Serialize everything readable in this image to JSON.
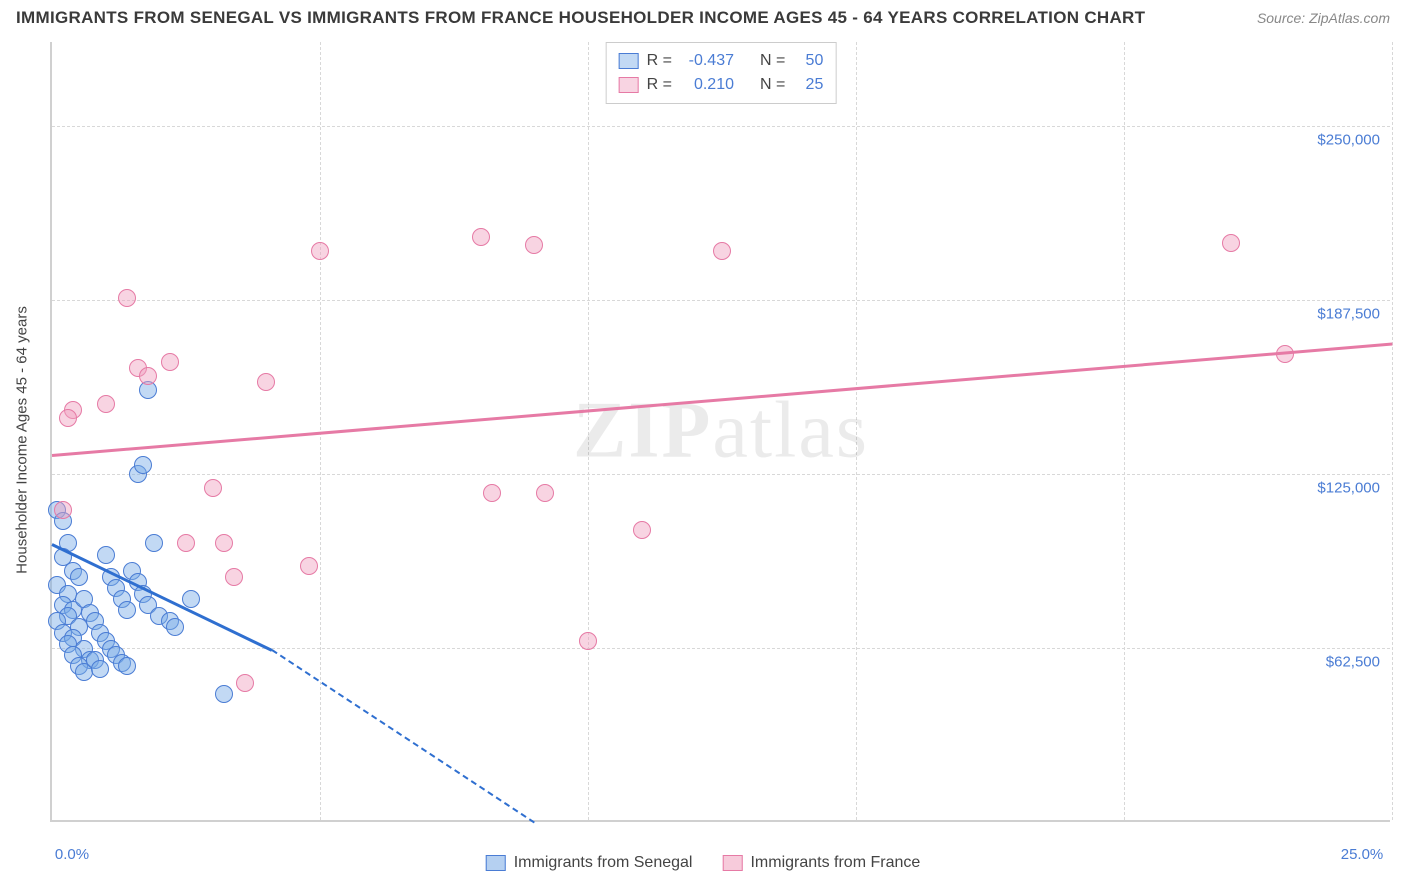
{
  "title": "IMMIGRANTS FROM SENEGAL VS IMMIGRANTS FROM FRANCE HOUSEHOLDER INCOME AGES 45 - 64 YEARS CORRELATION CHART",
  "source": "Source: ZipAtlas.com",
  "y_axis_title": "Householder Income Ages 45 - 64 years",
  "watermark_bold": "ZIP",
  "watermark_rest": "atlas",
  "chart": {
    "type": "scatter",
    "xlim": [
      0,
      25
    ],
    "ylim": [
      0,
      280000
    ],
    "x_ticks": [
      0,
      5,
      10,
      15,
      20,
      25
    ],
    "y_gridlines": [
      62500,
      125000,
      187500,
      250000
    ],
    "y_tick_labels": [
      "$62,500",
      "$125,000",
      "$187,500",
      "$250,000"
    ],
    "x_tick_labels_shown": {
      "0": "0.0%",
      "25": "25.0%"
    },
    "background_color": "#ffffff",
    "grid_color": "#d8d8d8",
    "axis_color": "#d0d0d0"
  },
  "series": [
    {
      "name": "Immigrants from Senegal",
      "label": "Immigrants from Senegal",
      "R": "-0.437",
      "N": "50",
      "marker_fill": "rgba(120,170,230,0.45)",
      "marker_stroke": "#4a7cd4",
      "marker_radius": 9,
      "trend_color": "#2f6fd0",
      "trend_width": 3,
      "trend": {
        "x1": 0,
        "y1": 100000,
        "x2": 4.1,
        "y2": 62000,
        "dash_x2": 9.0,
        "dash_y2": 0
      },
      "points": [
        [
          0.1,
          112000
        ],
        [
          0.2,
          108000
        ],
        [
          0.3,
          100000
        ],
        [
          0.2,
          95000
        ],
        [
          0.4,
          90000
        ],
        [
          0.1,
          85000
        ],
        [
          0.3,
          82000
        ],
        [
          0.5,
          88000
        ],
        [
          0.2,
          78000
        ],
        [
          0.4,
          76000
        ],
        [
          0.6,
          80000
        ],
        [
          0.3,
          74000
        ],
        [
          0.1,
          72000
        ],
        [
          0.5,
          70000
        ],
        [
          0.7,
          75000
        ],
        [
          0.2,
          68000
        ],
        [
          0.4,
          66000
        ],
        [
          0.8,
          72000
        ],
        [
          0.3,
          64000
        ],
        [
          0.6,
          62000
        ],
        [
          0.9,
          68000
        ],
        [
          0.4,
          60000
        ],
        [
          0.7,
          58000
        ],
        [
          1.0,
          65000
        ],
        [
          0.5,
          56000
        ],
        [
          1.1,
          62000
        ],
        [
          0.6,
          54000
        ],
        [
          1.2,
          60000
        ],
        [
          0.8,
          58000
        ],
        [
          1.3,
          57000
        ],
        [
          0.9,
          55000
        ],
        [
          1.4,
          56000
        ],
        [
          1.0,
          96000
        ],
        [
          1.5,
          90000
        ],
        [
          1.1,
          88000
        ],
        [
          1.6,
          86000
        ],
        [
          1.2,
          84000
        ],
        [
          1.7,
          82000
        ],
        [
          1.3,
          80000
        ],
        [
          1.8,
          78000
        ],
        [
          1.4,
          76000
        ],
        [
          2.0,
          74000
        ],
        [
          1.9,
          100000
        ],
        [
          1.6,
          125000
        ],
        [
          1.7,
          128000
        ],
        [
          2.2,
          72000
        ],
        [
          2.3,
          70000
        ],
        [
          2.6,
          80000
        ],
        [
          3.2,
          46000
        ],
        [
          1.8,
          155000
        ]
      ]
    },
    {
      "name": "Immigrants from France",
      "label": "Immigrants from France",
      "R": "0.210",
      "N": "25",
      "marker_fill": "rgba(240,160,190,0.45)",
      "marker_stroke": "#e67aa5",
      "marker_radius": 9,
      "trend_color": "#e67aa5",
      "trend_width": 3,
      "trend": {
        "x1": 0,
        "y1": 132000,
        "x2": 25,
        "y2": 172000
      },
      "points": [
        [
          0.2,
          112000
        ],
        [
          0.4,
          148000
        ],
        [
          1.0,
          150000
        ],
        [
          1.4,
          188000
        ],
        [
          1.6,
          163000
        ],
        [
          1.8,
          160000
        ],
        [
          2.2,
          165000
        ],
        [
          2.5,
          100000
        ],
        [
          3.0,
          120000
        ],
        [
          3.2,
          100000
        ],
        [
          3.4,
          88000
        ],
        [
          3.6,
          50000
        ],
        [
          4.0,
          158000
        ],
        [
          4.8,
          92000
        ],
        [
          5.0,
          205000
        ],
        [
          8.0,
          210000
        ],
        [
          8.2,
          118000
        ],
        [
          9.0,
          207000
        ],
        [
          9.2,
          118000
        ],
        [
          10.0,
          65000
        ],
        [
          11.0,
          105000
        ],
        [
          12.5,
          205000
        ],
        [
          22.0,
          208000
        ],
        [
          23.0,
          168000
        ],
        [
          0.3,
          145000
        ]
      ]
    }
  ],
  "legend_top_labels": {
    "R": "R =",
    "N": "N ="
  },
  "legend_bottom": [
    {
      "label": "Immigrants from Senegal",
      "fill": "rgba(120,170,230,0.55)",
      "stroke": "#4a7cd4"
    },
    {
      "label": "Immigrants from France",
      "fill": "rgba(240,160,190,0.55)",
      "stroke": "#e67aa5"
    }
  ]
}
